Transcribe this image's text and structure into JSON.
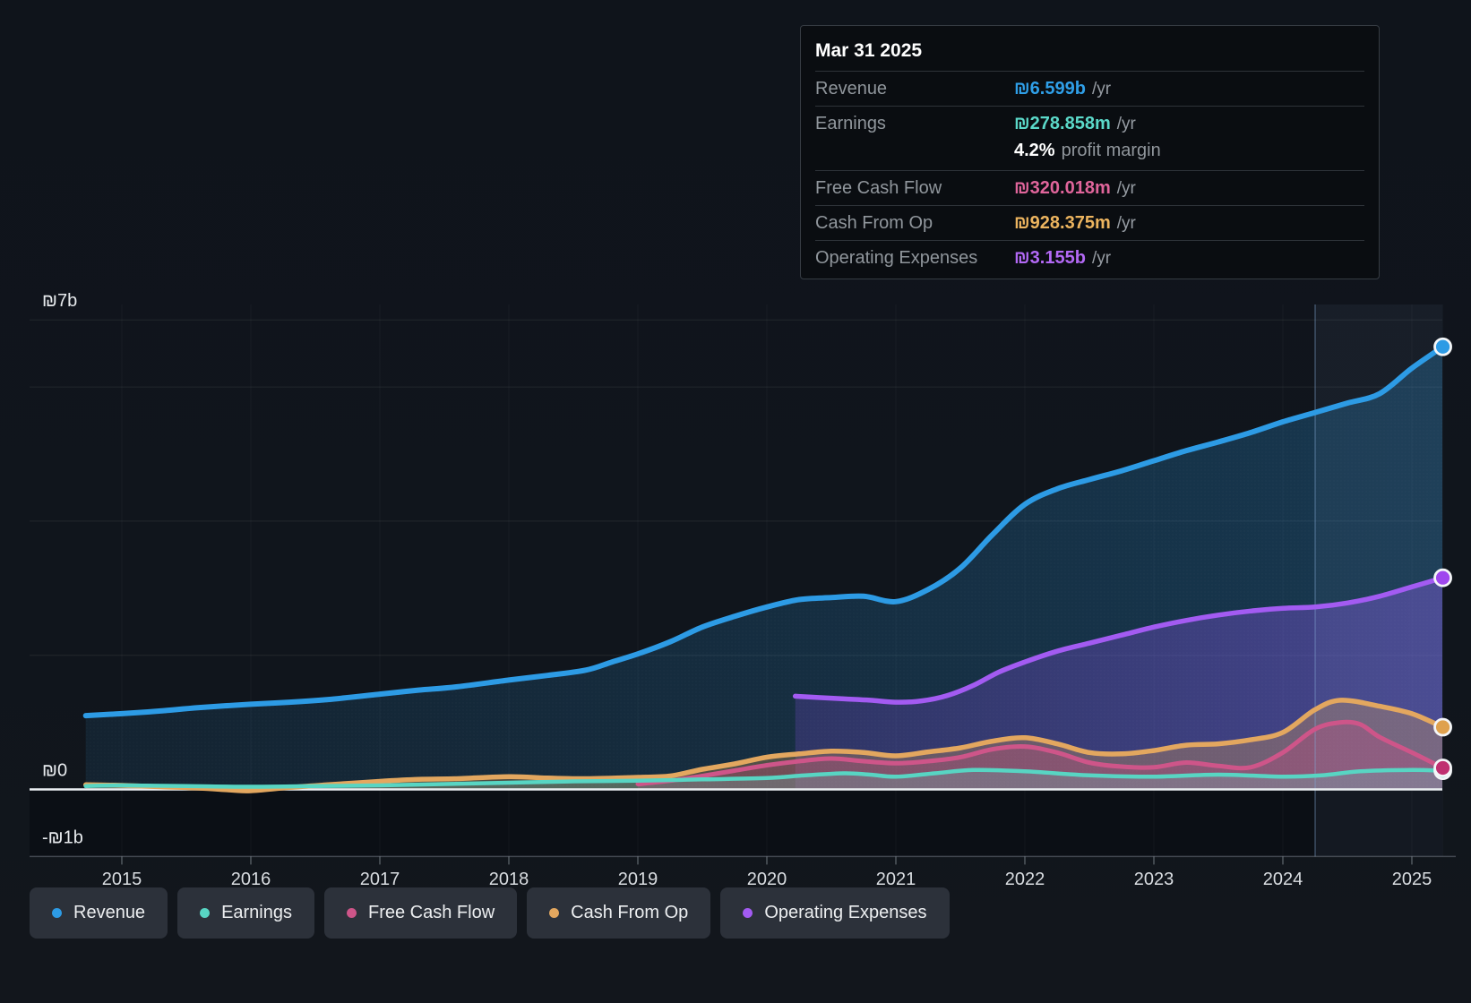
{
  "tooltip": {
    "title": "Mar 31 2025",
    "rows": [
      {
        "label": "Revenue",
        "value": "₪6.599b",
        "suffix": "/yr",
        "color": "#2f9fe8"
      },
      {
        "label": "Earnings",
        "value": "₪278.858m",
        "suffix": "/yr",
        "color": "#5bd9c9",
        "note_strong": "4.2%",
        "note_rest": "profit margin"
      },
      {
        "label": "Free Cash Flow",
        "value": "₪320.018m",
        "suffix": "/yr",
        "color": "#e0659b"
      },
      {
        "label": "Cash From Op",
        "value": "₪928.375m",
        "suffix": "/yr",
        "color": "#ecb45f"
      },
      {
        "label": "Operating Expenses",
        "value": "₪3.155b",
        "suffix": "/yr",
        "color": "#b369f5"
      }
    ]
  },
  "legend": {
    "items": [
      {
        "label": "Revenue",
        "color": "#2d9be5"
      },
      {
        "label": "Earnings",
        "color": "#58d5c3"
      },
      {
        "label": "Free Cash Flow",
        "color": "#ce5589"
      },
      {
        "label": "Cash From Op",
        "color": "#e3a75f"
      },
      {
        "label": "Operating Expenses",
        "color": "#a35bf2"
      }
    ]
  },
  "chart_data": {
    "type": "area",
    "title": "",
    "x_axis": {
      "ticks": [
        2015,
        2016,
        2017,
        2018,
        2019,
        2020,
        2021,
        2022,
        2023,
        2024,
        2025
      ],
      "range": [
        2014.29,
        2025.24
      ]
    },
    "y_axis": {
      "unit": "₪ billions",
      "labels": [
        {
          "text": "₪7b",
          "value": 7
        },
        {
          "text": "₪0",
          "value": 0
        },
        {
          "text": "-₪1b",
          "value": -1
        }
      ],
      "gridlines": [
        7,
        6,
        4,
        2
      ],
      "zero_line": 0,
      "axis_bottom": -1,
      "range": [
        -1,
        7.36
      ],
      "grid": true
    },
    "highlight": {
      "from": 2024.25,
      "to": 2025.24,
      "fill": "rgba(140,170,215,0.07)",
      "edge_color": "rgba(130,165,210,0.40)"
    },
    "legend_position": "bottom",
    "series": [
      {
        "name": "Revenue",
        "color": "#2d9be5",
        "marker_color": "#2d9be5",
        "line_width": 6,
        "fill_from": "rgba(45,155,229,0.10)",
        "fill_to": "rgba(45,160,235,0.25)",
        "points": [
          [
            2014.72,
            1.1
          ],
          [
            2015,
            1.13
          ],
          [
            2015.3,
            1.17
          ],
          [
            2015.6,
            1.22
          ],
          [
            2016,
            1.27
          ],
          [
            2016.3,
            1.3
          ],
          [
            2016.6,
            1.34
          ],
          [
            2017,
            1.42
          ],
          [
            2017.3,
            1.48
          ],
          [
            2017.6,
            1.53
          ],
          [
            2018,
            1.63
          ],
          [
            2018.3,
            1.7
          ],
          [
            2018.6,
            1.78
          ],
          [
            2018.8,
            1.9
          ],
          [
            2019,
            2.02
          ],
          [
            2019.25,
            2.2
          ],
          [
            2019.5,
            2.42
          ],
          [
            2019.75,
            2.58
          ],
          [
            2020,
            2.72
          ],
          [
            2020.25,
            2.83
          ],
          [
            2020.5,
            2.86
          ],
          [
            2020.75,
            2.88
          ],
          [
            2021,
            2.8
          ],
          [
            2021.25,
            2.98
          ],
          [
            2021.5,
            3.3
          ],
          [
            2021.75,
            3.8
          ],
          [
            2022,
            4.25
          ],
          [
            2022.25,
            4.48
          ],
          [
            2022.5,
            4.62
          ],
          [
            2022.75,
            4.75
          ],
          [
            2023,
            4.9
          ],
          [
            2023.25,
            5.05
          ],
          [
            2023.5,
            5.18
          ],
          [
            2023.75,
            5.32
          ],
          [
            2024,
            5.48
          ],
          [
            2024.25,
            5.62
          ],
          [
            2024.5,
            5.76
          ],
          [
            2024.75,
            5.9
          ],
          [
            2025,
            6.28
          ],
          [
            2025.24,
            6.599
          ]
        ]
      },
      {
        "name": "Operating Expenses",
        "color": "#a35bf2",
        "marker_color": "#9f47ee",
        "line_width": 5.5,
        "fill_from": "rgba(125,75,215,0.24)",
        "fill_to": "rgba(140,90,235,0.40)",
        "points": [
          [
            2020.22,
            1.39
          ],
          [
            2020.4,
            1.37
          ],
          [
            2020.6,
            1.35
          ],
          [
            2020.8,
            1.33
          ],
          [
            2021,
            1.3
          ],
          [
            2021.2,
            1.32
          ],
          [
            2021.4,
            1.4
          ],
          [
            2021.6,
            1.55
          ],
          [
            2021.8,
            1.75
          ],
          [
            2022,
            1.9
          ],
          [
            2022.25,
            2.06
          ],
          [
            2022.5,
            2.18
          ],
          [
            2022.75,
            2.3
          ],
          [
            2023,
            2.42
          ],
          [
            2023.25,
            2.52
          ],
          [
            2023.5,
            2.6
          ],
          [
            2023.75,
            2.66
          ],
          [
            2024,
            2.7
          ],
          [
            2024.25,
            2.72
          ],
          [
            2024.5,
            2.78
          ],
          [
            2024.75,
            2.88
          ],
          [
            2025,
            3.02
          ],
          [
            2025.24,
            3.155
          ]
        ]
      },
      {
        "name": "Cash From Op",
        "color": "#e3a75f",
        "marker_color": "#dfa14e",
        "line_width": 5.5,
        "fill_from": "rgba(222,160,85,0.28)",
        "fill_to": "rgba(222,160,85,0.32)",
        "points": [
          [
            2014.72,
            0.07
          ],
          [
            2015,
            0.06
          ],
          [
            2015.3,
            0.04
          ],
          [
            2015.6,
            0.02
          ],
          [
            2015.85,
            -0.01
          ],
          [
            2016,
            -0.02
          ],
          [
            2016.3,
            0.03
          ],
          [
            2016.6,
            0.07
          ],
          [
            2017,
            0.12
          ],
          [
            2017.3,
            0.15
          ],
          [
            2017.6,
            0.16
          ],
          [
            2018,
            0.19
          ],
          [
            2018.3,
            0.17
          ],
          [
            2018.6,
            0.16
          ],
          [
            2019,
            0.18
          ],
          [
            2019.25,
            0.2
          ],
          [
            2019.5,
            0.3
          ],
          [
            2019.75,
            0.38
          ],
          [
            2020,
            0.48
          ],
          [
            2020.25,
            0.53
          ],
          [
            2020.5,
            0.57
          ],
          [
            2020.75,
            0.55
          ],
          [
            2021,
            0.5
          ],
          [
            2021.25,
            0.56
          ],
          [
            2021.5,
            0.62
          ],
          [
            2021.75,
            0.72
          ],
          [
            2022,
            0.77
          ],
          [
            2022.25,
            0.68
          ],
          [
            2022.5,
            0.55
          ],
          [
            2022.75,
            0.53
          ],
          [
            2023,
            0.58
          ],
          [
            2023.25,
            0.66
          ],
          [
            2023.5,
            0.68
          ],
          [
            2023.75,
            0.74
          ],
          [
            2024,
            0.85
          ],
          [
            2024.25,
            1.19
          ],
          [
            2024.45,
            1.33
          ],
          [
            2024.75,
            1.24
          ],
          [
            2025,
            1.13
          ],
          [
            2025.24,
            0.928
          ]
        ]
      },
      {
        "name": "Free Cash Flow",
        "color": "#ce5589",
        "marker_color": "#c03070",
        "line_width": 5,
        "fill_from": "rgba(195,70,125,0.28)",
        "fill_to": "rgba(195,70,125,0.32)",
        "points": [
          [
            2019,
            0.08
          ],
          [
            2019.25,
            0.13
          ],
          [
            2019.5,
            0.2
          ],
          [
            2019.75,
            0.28
          ],
          [
            2020,
            0.36
          ],
          [
            2020.25,
            0.42
          ],
          [
            2020.5,
            0.46
          ],
          [
            2020.75,
            0.42
          ],
          [
            2021,
            0.39
          ],
          [
            2021.25,
            0.42
          ],
          [
            2021.5,
            0.48
          ],
          [
            2021.75,
            0.6
          ],
          [
            2022,
            0.64
          ],
          [
            2022.25,
            0.55
          ],
          [
            2022.5,
            0.4
          ],
          [
            2022.75,
            0.34
          ],
          [
            2023,
            0.33
          ],
          [
            2023.25,
            0.4
          ],
          [
            2023.5,
            0.35
          ],
          [
            2023.75,
            0.33
          ],
          [
            2024,
            0.55
          ],
          [
            2024.25,
            0.9
          ],
          [
            2024.45,
            1.0
          ],
          [
            2024.6,
            0.97
          ],
          [
            2024.75,
            0.78
          ],
          [
            2025,
            0.55
          ],
          [
            2025.24,
            0.32
          ]
        ]
      },
      {
        "name": "Earnings",
        "color": "#58d5c3",
        "marker_color": "#49c8b8",
        "line_width": 4.5,
        "fill_from": "rgba(100,200,190,0.20)",
        "fill_to": "rgba(100,200,190,0.25)",
        "points": [
          [
            2014.72,
            0.05
          ],
          [
            2015,
            0.06
          ],
          [
            2015.5,
            0.05
          ],
          [
            2016,
            0.04
          ],
          [
            2016.5,
            0.05
          ],
          [
            2017,
            0.06
          ],
          [
            2017.5,
            0.08
          ],
          [
            2018,
            0.1
          ],
          [
            2018.5,
            0.12
          ],
          [
            2019,
            0.13
          ],
          [
            2019.5,
            0.15
          ],
          [
            2020,
            0.17
          ],
          [
            2020.3,
            0.21
          ],
          [
            2020.6,
            0.24
          ],
          [
            2020.8,
            0.22
          ],
          [
            2021,
            0.19
          ],
          [
            2021.3,
            0.24
          ],
          [
            2021.6,
            0.29
          ],
          [
            2022,
            0.27
          ],
          [
            2022.5,
            0.21
          ],
          [
            2023,
            0.19
          ],
          [
            2023.5,
            0.22
          ],
          [
            2024,
            0.19
          ],
          [
            2024.3,
            0.21
          ],
          [
            2024.6,
            0.27
          ],
          [
            2025,
            0.29
          ],
          [
            2025.24,
            0.279
          ]
        ]
      }
    ]
  }
}
